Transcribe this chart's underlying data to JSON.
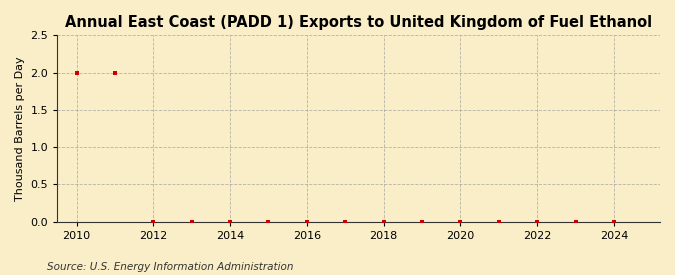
{
  "title": "Annual East Coast (PADD 1) Exports to United Kingdom of Fuel Ethanol",
  "ylabel": "Thousand Barrels per Day",
  "source": "Source: U.S. Energy Information Administration",
  "xlim": [
    2009.5,
    2025.2
  ],
  "ylim": [
    0.0,
    2.5
  ],
  "yticks": [
    0.0,
    0.5,
    1.0,
    1.5,
    2.0,
    2.5
  ],
  "xticks": [
    2010,
    2012,
    2014,
    2016,
    2018,
    2020,
    2022,
    2024
  ],
  "years": [
    2010,
    2011,
    2012,
    2013,
    2014,
    2015,
    2016,
    2017,
    2018,
    2019,
    2020,
    2021,
    2022,
    2023,
    2024
  ],
  "values": [
    2.0,
    2.0,
    0.0,
    0.0,
    0.0,
    0.0,
    0.0,
    0.0,
    0.0,
    0.0,
    0.0,
    0.0,
    0.0,
    0.0,
    0.0
  ],
  "marker_color": "#cc0000",
  "marker_size": 3.5,
  "bg_color": "#faeec8",
  "plot_bg_color": "#faeec8",
  "grid_color": "#999999",
  "title_fontsize": 10.5,
  "label_fontsize": 8,
  "tick_fontsize": 8,
  "source_fontsize": 7.5
}
